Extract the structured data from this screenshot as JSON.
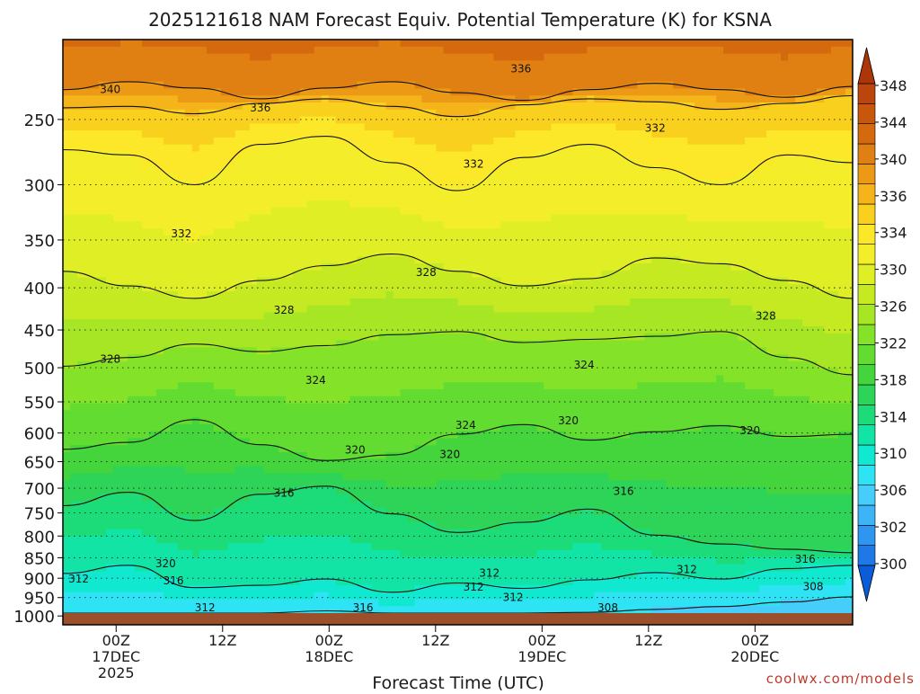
{
  "chart_data": {
    "type": "heatmap",
    "title": "2025121618 NAM Forecast Equiv. Potential Temperature (K) for KSNA",
    "xlabel": "Forecast Time (UTC)",
    "ylabel": "",
    "watermark": "coolwx.com/models",
    "y_ticks": [
      250,
      300,
      350,
      400,
      450,
      500,
      550,
      600,
      650,
      700,
      750,
      800,
      850,
      900,
      950,
      1000
    ],
    "y_tick_labels": [
      "250",
      "300",
      "350",
      "400",
      "450",
      "500",
      "550",
      "600",
      "650",
      "700",
      "750",
      "800",
      "850",
      "900",
      "950",
      "1000"
    ],
    "ylim": [
      1025,
      200
    ],
    "y_scale": "log",
    "y_inverted": true,
    "x_start": "2025-12-16 18Z",
    "x_end": "2025-12-20 11Z",
    "x_ticks": [
      {
        "lines": [
          "00Z",
          "17DEC",
          "2025"
        ]
      },
      {
        "lines": [
          "12Z"
        ]
      },
      {
        "lines": [
          "00Z",
          "18DEC"
        ]
      },
      {
        "lines": [
          "12Z"
        ]
      },
      {
        "lines": [
          "00Z",
          "19DEC"
        ]
      },
      {
        "lines": [
          "12Z"
        ]
      },
      {
        "lines": [
          "00Z",
          "20DEC"
        ]
      }
    ],
    "grid": true,
    "colorbar": {
      "levels": [
        298,
        300,
        302,
        304,
        306,
        308,
        310,
        312,
        314,
        316,
        318,
        320,
        322,
        324,
        326,
        328,
        330,
        332,
        334,
        336,
        338,
        340,
        342,
        344,
        346,
        348,
        350
      ],
      "labels": [
        "300",
        "302",
        "306",
        "310",
        "314",
        "318",
        "322",
        "326",
        "330",
        "334",
        "336",
        "340",
        "344",
        "348"
      ],
      "colors": [
        "#0a5cd8",
        "#1e78e6",
        "#2e96f0",
        "#3cb4f6",
        "#46cdfa",
        "#2ee4f4",
        "#10e8d0",
        "#12e4a6",
        "#1cdc7a",
        "#2ed458",
        "#44d43c",
        "#62dc30",
        "#84e228",
        "#a6e624",
        "#c6ea22",
        "#e0ee26",
        "#f4ee2a",
        "#fce828",
        "#fad01e",
        "#f4b41a",
        "#ec9a16",
        "#e08012",
        "#d4690e",
        "#c8560c",
        "#bb450a",
        "#ad3608"
      ]
    },
    "contours": [
      {
        "level": 340,
        "y": [
          230,
          225,
          229,
          236,
          229,
          225,
          232,
          237,
          230,
          226,
          230,
          235,
          228
        ]
      },
      {
        "level": 336,
        "y": [
          242,
          241,
          246,
          239,
          236,
          241,
          248,
          240,
          236,
          238,
          243,
          239,
          234
        ]
      },
      {
        "level": 332,
        "y": [
          272,
          276,
          300,
          268,
          262,
          282,
          305,
          278,
          268,
          286,
          300,
          276,
          282
        ]
      },
      {
        "level": 328,
        "y": [
          382,
          398,
          412,
          392,
          376,
          364,
          382,
          398,
          390,
          368,
          374,
          392,
          412
        ]
      },
      {
        "level": 324,
        "y": [
          498,
          486,
          468,
          478,
          470,
          456,
          452,
          466,
          462,
          458,
          452,
          486,
          510
        ]
      },
      {
        "level": 320,
        "y": [
          628,
          616,
          578,
          620,
          648,
          638,
          602,
          586,
          612,
          598,
          588,
          606,
          602
        ]
      },
      {
        "level": 316,
        "y": [
          735,
          708,
          766,
          712,
          696,
          752,
          792,
          770,
          742,
          798,
          818,
          830,
          838
        ]
      },
      {
        "level": 312,
        "y": [
          888,
          868,
          924,
          918,
          902,
          936,
          912,
          926,
          904,
          886,
          902,
          876,
          868
        ]
      },
      {
        "level": 308,
        "y": [
          998,
          992,
          1000,
          996,
          986,
          1002,
          998,
          994,
          990,
          982,
          974,
          962,
          948
        ]
      }
    ],
    "contour_labels": [
      {
        "text": "340",
        "x": 0.06,
        "p": 230
      },
      {
        "text": "336",
        "x": 0.25,
        "p": 242
      },
      {
        "text": "336",
        "x": 0.58,
        "p": 217
      },
      {
        "text": "332",
        "x": 0.15,
        "p": 344
      },
      {
        "text": "332",
        "x": 0.52,
        "p": 283
      },
      {
        "text": "332",
        "x": 0.75,
        "p": 256
      },
      {
        "text": "328",
        "x": 0.06,
        "p": 488
      },
      {
        "text": "328",
        "x": 0.28,
        "p": 426
      },
      {
        "text": "328",
        "x": 0.46,
        "p": 383
      },
      {
        "text": "328",
        "x": 0.89,
        "p": 433
      },
      {
        "text": "324",
        "x": 0.32,
        "p": 518
      },
      {
        "text": "324",
        "x": 0.51,
        "p": 587
      },
      {
        "text": "324",
        "x": 0.66,
        "p": 496
      },
      {
        "text": "320",
        "x": 0.37,
        "p": 629
      },
      {
        "text": "320",
        "x": 0.49,
        "p": 637
      },
      {
        "text": "320",
        "x": 0.64,
        "p": 580
      },
      {
        "text": "320",
        "x": 0.87,
        "p": 596
      },
      {
        "text": "320",
        "x": 0.13,
        "p": 864
      },
      {
        "text": "316",
        "x": 0.28,
        "p": 710
      },
      {
        "text": "316",
        "x": 0.71,
        "p": 706
      },
      {
        "text": "316",
        "x": 0.94,
        "p": 853
      },
      {
        "text": "316",
        "x": 0.14,
        "p": 906
      },
      {
        "text": "316",
        "x": 0.38,
        "p": 983
      },
      {
        "text": "312",
        "x": 0.02,
        "p": 902
      },
      {
        "text": "312",
        "x": 0.18,
        "p": 988
      },
      {
        "text": "312",
        "x": 0.54,
        "p": 887
      },
      {
        "text": "312",
        "x": 0.52,
        "p": 922
      },
      {
        "text": "312",
        "x": 0.57,
        "p": 950
      },
      {
        "text": "312",
        "x": 0.79,
        "p": 878
      },
      {
        "text": "308",
        "x": 0.95,
        "p": 921
      },
      {
        "text": "308",
        "x": 0.69,
        "p": 1002
      }
    ]
  }
}
